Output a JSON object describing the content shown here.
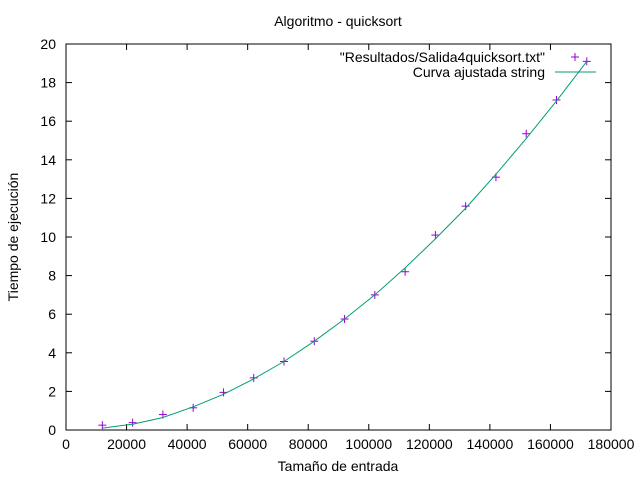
{
  "chart_data": {
    "type": "scatter",
    "title": "Algoritmo - quicksort",
    "xlabel": "Tamaño de entrada",
    "ylabel": "Tiempo de ejecución",
    "xlim": [
      0,
      180000
    ],
    "ylim": [
      0,
      20
    ],
    "xticks": [
      "0",
      "20000",
      "40000",
      "60000",
      "80000",
      "100000",
      "120000",
      "140000",
      "160000",
      "180000"
    ],
    "yticks": [
      "0",
      "2",
      "4",
      "6",
      "8",
      "10",
      "12",
      "14",
      "16",
      "18",
      "20"
    ],
    "grid": false,
    "legend_position": "top-right",
    "series": [
      {
        "name": "\"Resultados/Salida4quicksort.txt\"",
        "kind": "points",
        "marker": "plus",
        "color": "#9400d3",
        "x": [
          12000,
          22000,
          32000,
          42000,
          52000,
          62000,
          72000,
          82000,
          92000,
          102000,
          112000,
          122000,
          132000,
          142000,
          152000,
          162000,
          172000
        ],
        "y": [
          0.25,
          0.38,
          0.8,
          1.15,
          1.95,
          2.7,
          3.55,
          4.6,
          5.75,
          7.0,
          8.2,
          10.1,
          11.6,
          13.1,
          15.35,
          17.1,
          19.1
        ]
      },
      {
        "name": "Curva ajustada string",
        "kind": "line",
        "color": "#009e73",
        "x": [
          12000,
          22000,
          32000,
          42000,
          52000,
          62000,
          72000,
          82000,
          92000,
          102000,
          112000,
          122000,
          132000,
          142000,
          152000,
          162000,
          172000
        ],
        "y": [
          0.1,
          0.3,
          0.65,
          1.2,
          1.85,
          2.65,
          3.55,
          4.6,
          5.75,
          7.0,
          8.4,
          9.9,
          11.5,
          13.25,
          15.1,
          17.05,
          19.1
        ]
      }
    ]
  }
}
